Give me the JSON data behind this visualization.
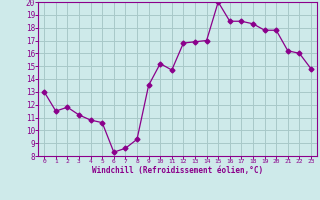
{
  "hours": [
    0,
    1,
    2,
    3,
    4,
    5,
    6,
    7,
    8,
    9,
    10,
    11,
    12,
    13,
    14,
    15,
    16,
    17,
    18,
    19,
    20,
    21,
    22,
    23
  ],
  "values": [
    13,
    11.5,
    11.8,
    11.2,
    10.8,
    10.6,
    8.3,
    8.6,
    9.3,
    13.5,
    15.2,
    14.7,
    16.8,
    16.9,
    17.0,
    20.0,
    18.5,
    18.5,
    18.3,
    17.8,
    17.8,
    16.2,
    16.0,
    14.8
  ],
  "line_color": "#8B008B",
  "marker": "D",
  "marker_size": 2.5,
  "bg_color": "#ceeaea",
  "grid_color": "#a8c8c8",
  "xlabel": "Windchill (Refroidissement éolien,°C)",
  "ylabel": "",
  "ylim": [
    8,
    20
  ],
  "xlim": [
    -0.5,
    23.5
  ],
  "yticks": [
    8,
    9,
    10,
    11,
    12,
    13,
    14,
    15,
    16,
    17,
    18,
    19,
    20
  ],
  "xticks": [
    0,
    1,
    2,
    3,
    4,
    5,
    6,
    7,
    8,
    9,
    10,
    11,
    12,
    13,
    14,
    15,
    16,
    17,
    18,
    19,
    20,
    21,
    22,
    23
  ],
  "tick_color": "#8B008B",
  "label_color": "#8B008B",
  "spine_color": "#8B008B"
}
